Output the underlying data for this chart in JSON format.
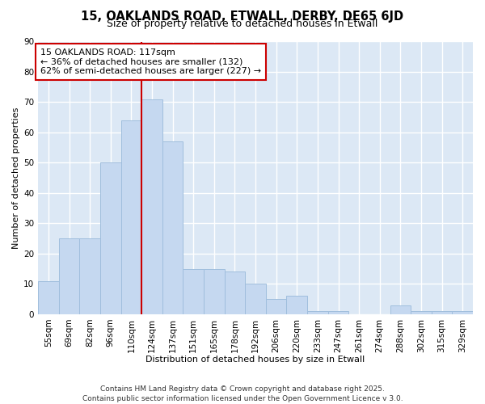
{
  "title": "15, OAKLANDS ROAD, ETWALL, DERBY, DE65 6JD",
  "subtitle": "Size of property relative to detached houses in Etwall",
  "xlabel": "Distribution of detached houses by size in Etwall",
  "ylabel": "Number of detached properties",
  "bar_color": "#c5d8f0",
  "bar_edge_color": "#a0bedd",
  "plot_bg_color": "#dce8f5",
  "fig_bg_color": "#ffffff",
  "grid_color": "#ffffff",
  "categories": [
    "55sqm",
    "69sqm",
    "82sqm",
    "96sqm",
    "110sqm",
    "124sqm",
    "137sqm",
    "151sqm",
    "165sqm",
    "178sqm",
    "192sqm",
    "206sqm",
    "220sqm",
    "233sqm",
    "247sqm",
    "261sqm",
    "274sqm",
    "288sqm",
    "302sqm",
    "315sqm",
    "329sqm"
  ],
  "values": [
    11,
    25,
    25,
    50,
    64,
    71,
    57,
    15,
    15,
    14,
    10,
    5,
    6,
    1,
    1,
    0,
    0,
    3,
    1,
    1,
    1
  ],
  "vline_x": 4.5,
  "vline_color": "#cc0000",
  "annotation_text": "15 OAKLANDS ROAD: 117sqm\n← 36% of detached houses are smaller (132)\n62% of semi-detached houses are larger (227) →",
  "annotation_box_color": "#ffffff",
  "annotation_box_edge_color": "#cc0000",
  "ylim": [
    0,
    90
  ],
  "yticks": [
    0,
    10,
    20,
    30,
    40,
    50,
    60,
    70,
    80,
    90
  ],
  "footer": "Contains HM Land Registry data © Crown copyright and database right 2025.\nContains public sector information licensed under the Open Government Licence v 3.0.",
  "title_fontsize": 10.5,
  "subtitle_fontsize": 9,
  "axis_label_fontsize": 8,
  "tick_fontsize": 7.5,
  "annotation_fontsize": 8,
  "footer_fontsize": 6.5
}
